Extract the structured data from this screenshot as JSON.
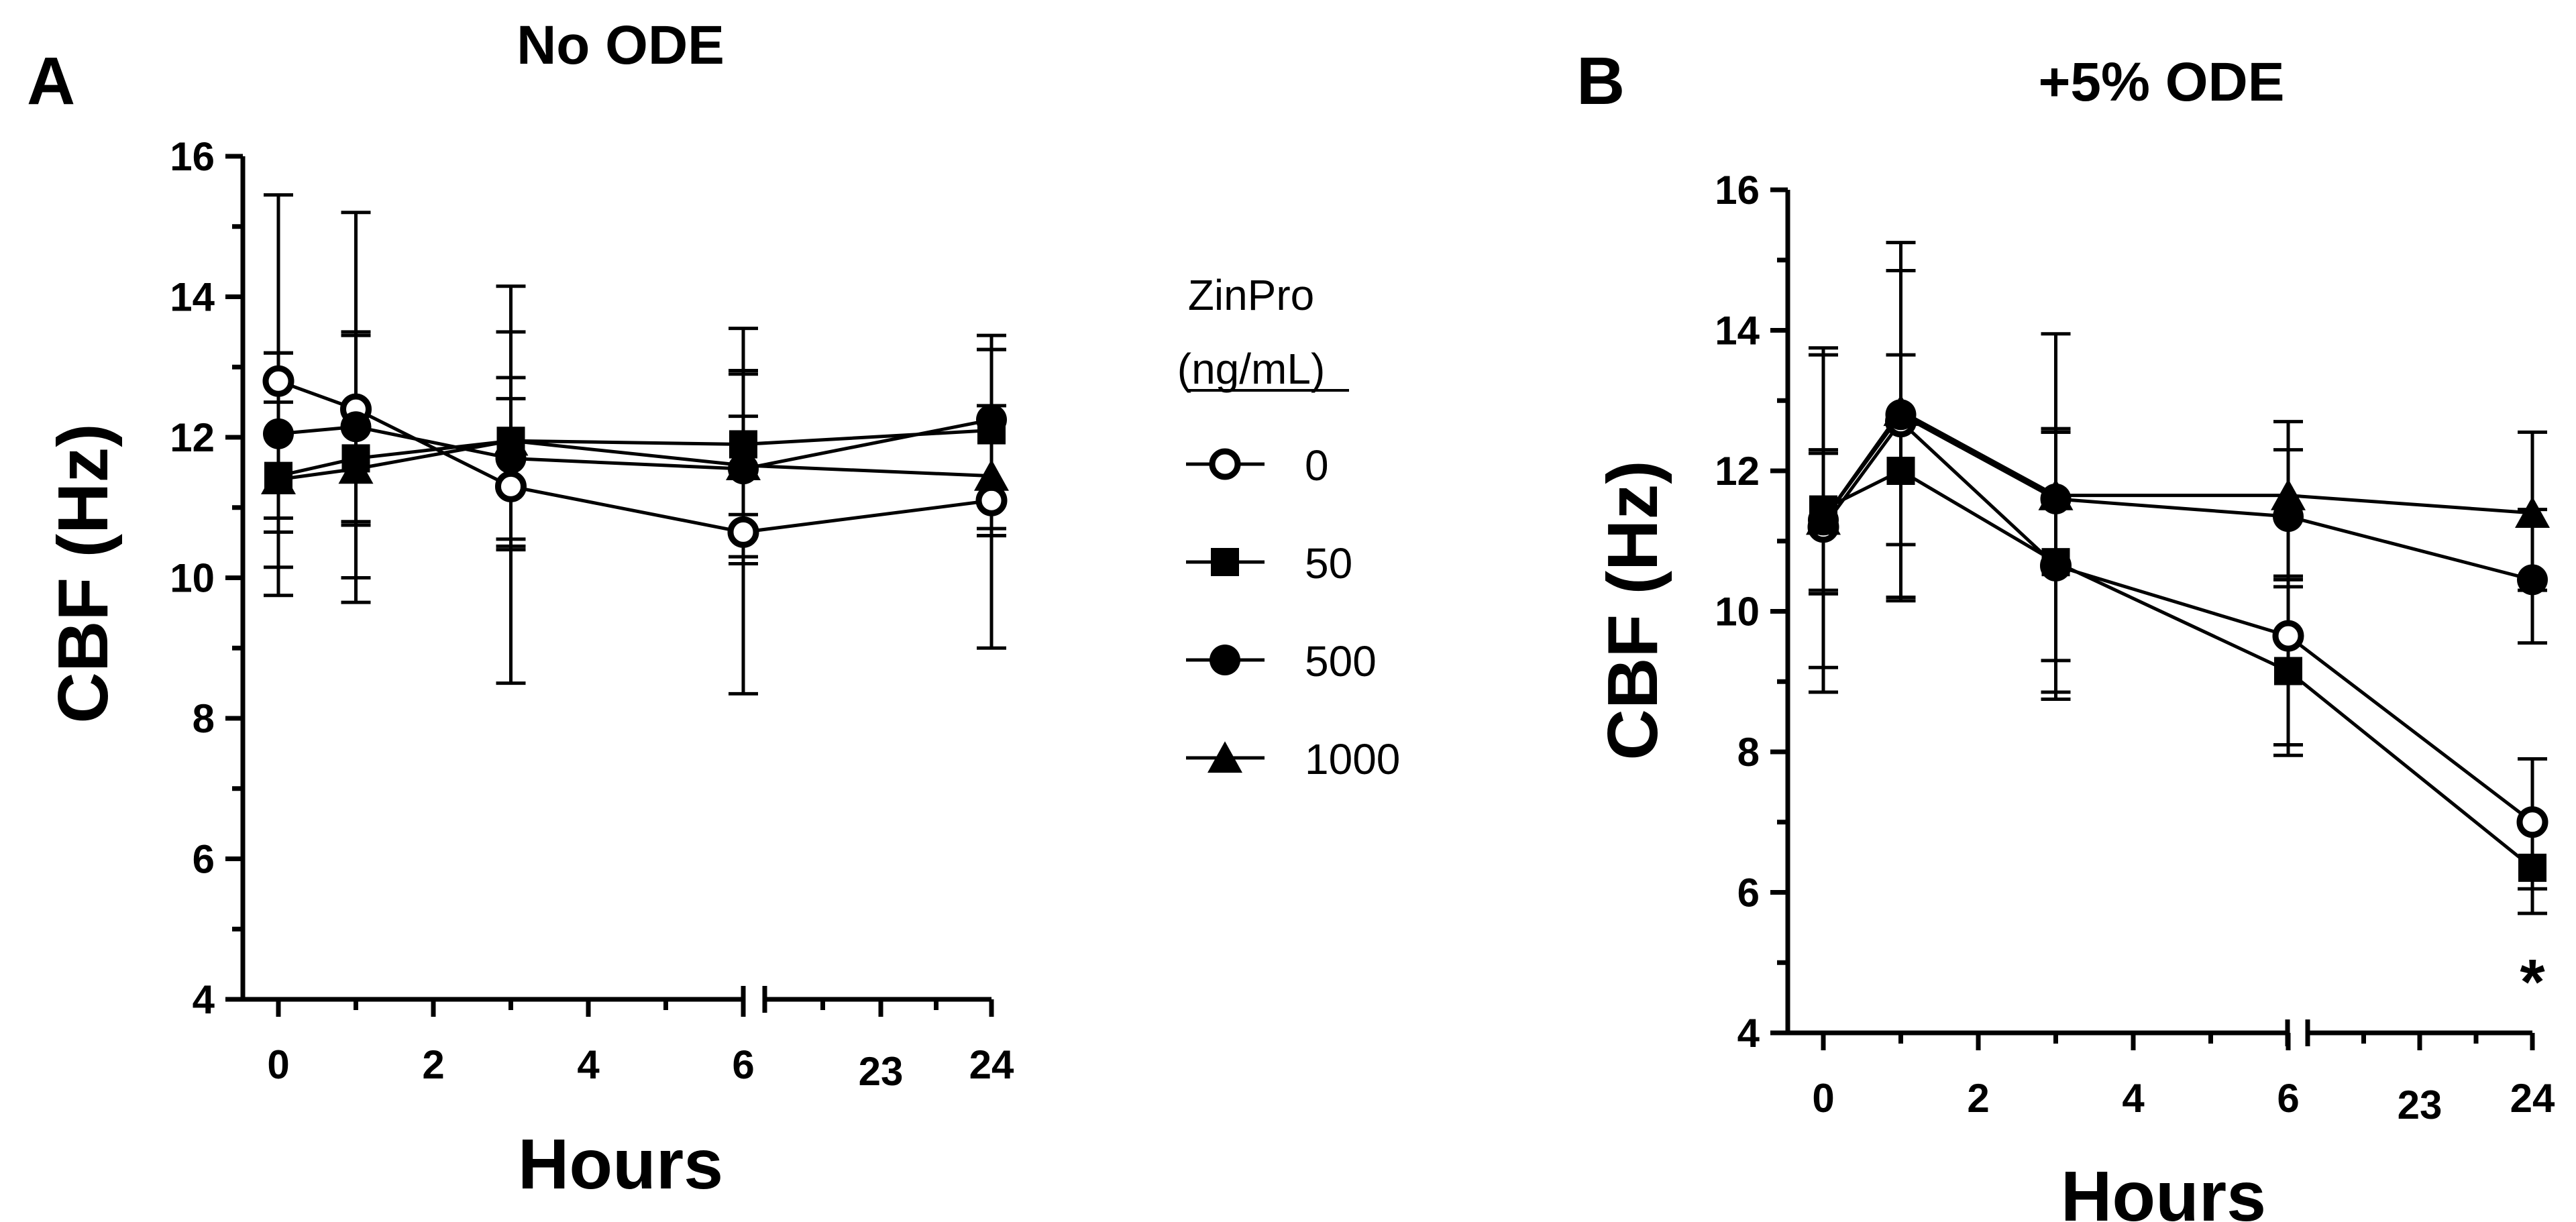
{
  "chart_data": [
    {
      "type": "line",
      "panel_label": "A",
      "title": "No ODE",
      "xlabel": "Hours",
      "ylabel": "CBF (Hz)",
      "ylim": [
        4,
        16
      ],
      "yticks": [
        "4",
        "6",
        "8",
        "10",
        "12",
        "14",
        "16"
      ],
      "xticks": [
        "0",
        "2",
        "4",
        "6",
        "23",
        "24"
      ],
      "x_axis_break": "between 6 and 23 hours",
      "x": [
        0,
        1,
        3,
        6,
        24
      ],
      "series": [
        {
          "name": "0",
          "marker": "open-circle",
          "values": [
            12.8,
            12.4,
            11.3,
            10.65,
            11.1
          ],
          "err_high": [
            15.45,
            15.2,
            14.15,
            12.95,
            13.25
          ],
          "err_low": [
            10.15,
            9.65,
            8.5,
            8.35,
            9.0
          ]
        },
        {
          "name": "50",
          "marker": "filled-square",
          "values": [
            11.45,
            11.7,
            11.95,
            11.9,
            12.1
          ],
          "err_high": [
            13.2,
            13.5,
            13.5,
            13.55,
            13.45
          ],
          "err_low": [
            9.75,
            10.0,
            10.4,
            10.3,
            10.7
          ]
        },
        {
          "name": "500",
          "marker": "filled-circle",
          "values": [
            12.05,
            12.15,
            11.7,
            11.55,
            12.25
          ],
          "err_high": [
            13.2,
            13.45,
            12.85,
            12.9,
            13.25
          ],
          "err_low": [
            10.85,
            10.8,
            10.45,
            10.2,
            10.6
          ]
        },
        {
          "name": "1000",
          "marker": "filled-triangle",
          "values": [
            11.4,
            11.55,
            11.95,
            11.6,
            11.45
          ],
          "err_high": [
            12.5,
            12.4,
            12.55,
            12.3,
            12.45
          ],
          "err_low": [
            10.65,
            10.75,
            10.55,
            10.9,
            10.6
          ]
        }
      ]
    },
    {
      "type": "line",
      "panel_label": "B",
      "title": "+5% ODE",
      "xlabel": "Hours",
      "ylabel": "CBF (Hz)",
      "ylim": [
        4,
        16
      ],
      "yticks": [
        "4",
        "6",
        "8",
        "10",
        "12",
        "14",
        "16"
      ],
      "xticks": [
        "0",
        "2",
        "4",
        "6",
        "23",
        "24"
      ],
      "x_axis_break": "between 6 and 23 hours",
      "annotation": {
        "text": "*",
        "at_x": 24
      },
      "x": [
        0,
        1,
        3,
        6,
        24
      ],
      "series": [
        {
          "name": "0",
          "marker": "open-circle",
          "values": [
            11.2,
            12.7,
            10.65,
            9.65,
            7.0
          ],
          "err_high": [
            13.75,
            15.25,
            12.55,
            10.5,
            7.9
          ],
          "err_low": [
            8.85,
            10.15,
            8.75,
            8.1,
            6.05
          ]
        },
        {
          "name": "50",
          "marker": "filled-square",
          "values": [
            11.45,
            12.0,
            10.7,
            9.15,
            6.35
          ],
          "err_high": [
            13.65,
            14.85,
            12.55,
            10.45,
            7.0
          ],
          "err_low": [
            9.2,
            10.2,
            8.85,
            7.95,
            5.7
          ]
        },
        {
          "name": "500",
          "marker": "filled-circle",
          "values": [
            11.3,
            12.8,
            11.6,
            11.35,
            10.45
          ],
          "err_high": [
            12.25,
            13.65,
            13.95,
            12.3,
            11.45
          ],
          "err_low": [
            10.25,
            10.95,
            9.3,
            10.35,
            9.55
          ]
        },
        {
          "name": "1000",
          "marker": "filled-triangle",
          "values": [
            11.3,
            12.85,
            11.65,
            11.65,
            11.4
          ],
          "err_high": [
            12.3,
            14.85,
            12.6,
            12.7,
            12.55
          ],
          "err_low": [
            10.3,
            10.95,
            10.7,
            10.5,
            10.3
          ]
        }
      ]
    }
  ],
  "legend": {
    "title_line1": "ZinPro",
    "title_line2": "(ng/mL)",
    "entries": [
      {
        "label": "0",
        "marker": "open-circle"
      },
      {
        "label": "50",
        "marker": "filled-square"
      },
      {
        "label": "500",
        "marker": "filled-circle"
      },
      {
        "label": "1000",
        "marker": "filled-triangle"
      }
    ]
  }
}
